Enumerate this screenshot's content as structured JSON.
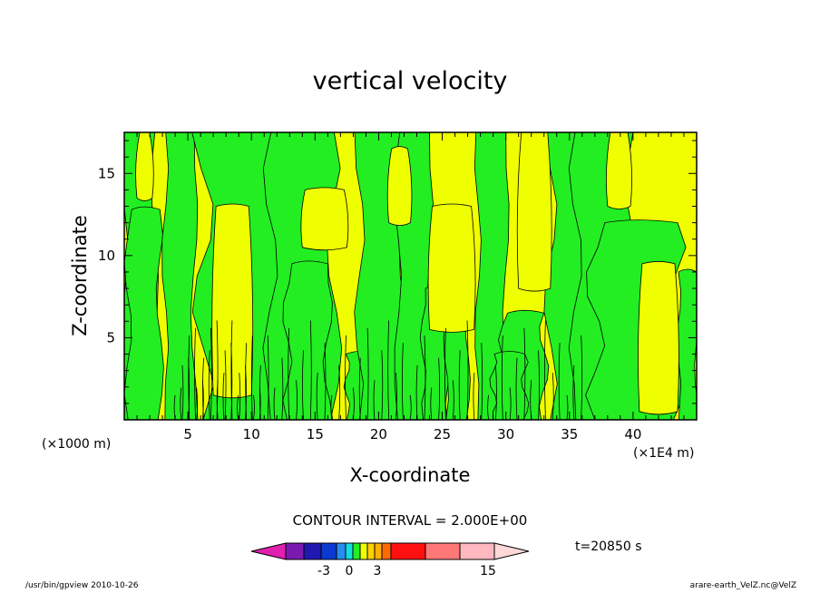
{
  "chart_data": {
    "type": "heatmap",
    "title": "vertical velocity",
    "xlabel": "X-coordinate",
    "ylabel": "Z-coordinate",
    "x_unit": "(×1000 m)",
    "x_factor": "(×1E4 m)",
    "xlim": [
      0,
      45
    ],
    "ylim": [
      0,
      17.5
    ],
    "xticks": [
      5,
      10,
      15,
      20,
      25,
      30,
      35,
      40
    ],
    "yticks": [
      5,
      10,
      15
    ],
    "contour_interval": "CONTOUR INTERVAL = 2.000E+00",
    "time_label": "t=20850 s",
    "colorbar": {
      "colors": [
        "#e020b0",
        "#7a1ab0",
        "#2018b0",
        "#0a3ad0",
        "#2a8cf0",
        "#10e0e0",
        "#22ee22",
        "#f0ff00",
        "#ffd000",
        "#ffb000",
        "#ff6a00",
        "#ff1010",
        "#ff7878",
        "#ffb8c0",
        "#ffd8d8"
      ],
      "tick_labels": [
        "-3",
        "0",
        "3",
        "15"
      ],
      "tick_values": [
        -3,
        0,
        3,
        15
      ]
    },
    "regions": {
      "positive_color": "#f0ff00",
      "negative_color": "#22ee22",
      "positive_range": [
        0,
        2
      ],
      "negative_range": [
        -2,
        0
      ]
    },
    "green_plumes": [
      {
        "xl": 0,
        "xr": 2.4,
        "ztop": 17.5
      },
      {
        "xl": 0.3,
        "xr": 2.8,
        "ztop": 12.8
      },
      {
        "xl": 3.2,
        "xr": 5.5,
        "ztop": 17.5
      },
      {
        "xl": 6.2,
        "xr": 13.5,
        "ztop": 17.5
      },
      {
        "xl": 11.5,
        "xr": 16.5,
        "ztop": 17.5
      },
      {
        "xl": 12.8,
        "xr": 16.0,
        "ztop": 9.5
      },
      {
        "xl": 17.5,
        "xr": 19.5,
        "ztop": 4.0
      },
      {
        "xl": 18.5,
        "xr": 22.0,
        "ztop": 17.5
      },
      {
        "xl": 21.5,
        "xr": 24.0,
        "ztop": 17.5
      },
      {
        "xl": 23.5,
        "xr": 25.5,
        "ztop": 8.0
      },
      {
        "xl": 25.3,
        "xr": 27.0,
        "ztop": 10.0
      },
      {
        "xl": 27.8,
        "xr": 30.0,
        "ztop": 17.5
      },
      {
        "xl": 29.8,
        "xr": 33.0,
        "ztop": 6.5
      },
      {
        "xl": 29.0,
        "xr": 31.5,
        "ztop": 4.0
      },
      {
        "xl": 33.5,
        "xr": 38.0,
        "ztop": 17.5
      },
      {
        "xl": 35.5,
        "xr": 40.0,
        "ztop": 17.5
      },
      {
        "xl": 37.0,
        "xr": 43.5,
        "ztop": 12.0
      },
      {
        "xl": 43.6,
        "xr": 45.0,
        "ztop": 9.0
      }
    ],
    "yellow_gaps": [
      {
        "xl": 1.0,
        "xr": 2.2,
        "zb": 13.5,
        "zt": 17.5
      },
      {
        "xl": 7.0,
        "xr": 10.0,
        "zb": 1.5,
        "zt": 13.0
      },
      {
        "xl": 14.0,
        "xr": 17.5,
        "zb": 10.5,
        "zt": 14.0
      },
      {
        "xl": 20.8,
        "xr": 22.5,
        "zb": 12.0,
        "zt": 16.5
      },
      {
        "xl": 24.0,
        "xr": 27.5,
        "zb": 5.5,
        "zt": 13.0
      },
      {
        "xl": 31.0,
        "xr": 33.5,
        "zb": 8.0,
        "zt": 17.5
      },
      {
        "xl": 38.0,
        "xr": 39.8,
        "zb": 13.0,
        "zt": 17.5
      },
      {
        "xl": 40.5,
        "xr": 43.5,
        "zb": 0.5,
        "zt": 9.5
      }
    ]
  },
  "footer": {
    "left": "/usr/bin/gpview   2010-10-26",
    "right": "arare-earth_VelZ.nc@VelZ"
  }
}
